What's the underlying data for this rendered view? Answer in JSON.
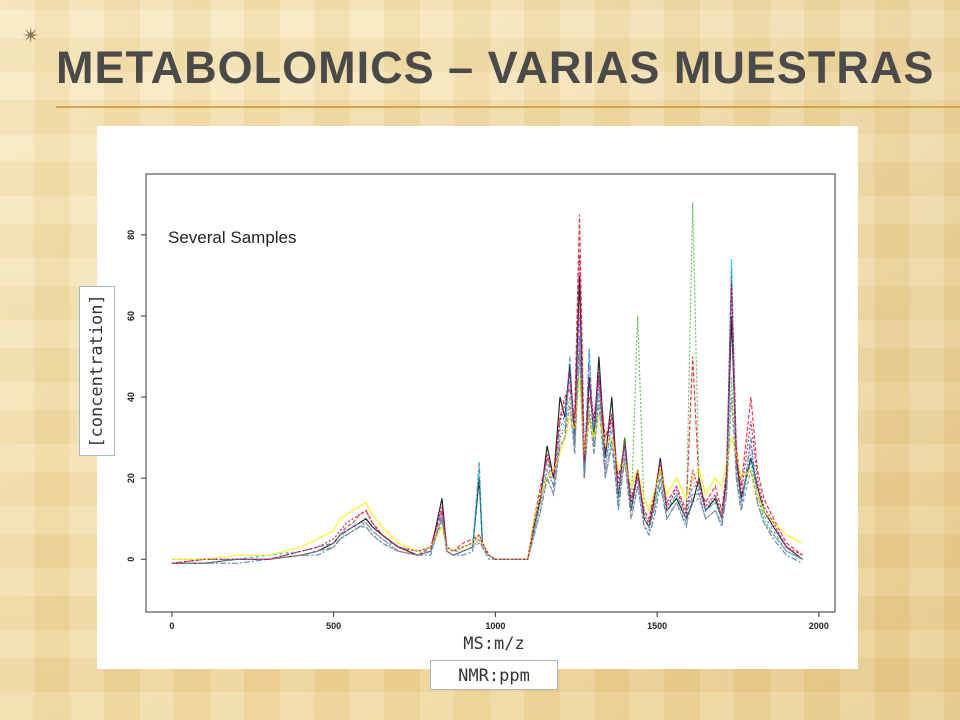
{
  "slide": {
    "title": "METABOLOMICS – VARIAS MUESTRAS",
    "bullet_icon": "star-icon",
    "accent_color": "#d5a44e"
  },
  "labels": {
    "annotation": "Several Samples",
    "ylabel": "[concentration]",
    "xlabel_line1": "MS:m/z",
    "xlabel_line2": "NMR:ppm"
  },
  "chart_data": {
    "type": "line",
    "title": "",
    "annotation": "Several Samples",
    "xlabel": "MS:m/z / NMR:ppm",
    "ylabel": "[concentration]",
    "xlim": [
      -80,
      2050
    ],
    "ylim": [
      -13,
      95
    ],
    "xticks": [
      0,
      500,
      1000,
      1500,
      2000
    ],
    "yticks": [
      0,
      20,
      40,
      60,
      80
    ],
    "grid": false,
    "legend": "none",
    "series_colors": [
      "#000000",
      "#e41a1c",
      "#4daf4a",
      "#377eb8",
      "#00bcd4",
      "#d633d6",
      "#ffee00",
      "#888888",
      "#b8005a"
    ],
    "x": [
      0,
      100,
      200,
      300,
      400,
      450,
      500,
      520,
      540,
      560,
      580,
      600,
      620,
      650,
      700,
      760,
      800,
      835,
      850,
      870,
      900,
      930,
      950,
      960,
      980,
      1000,
      1050,
      1100,
      1120,
      1140,
      1160,
      1180,
      1200,
      1215,
      1230,
      1245,
      1260,
      1275,
      1290,
      1305,
      1320,
      1340,
      1360,
      1380,
      1400,
      1420,
      1440,
      1460,
      1475,
      1490,
      1510,
      1530,
      1560,
      1590,
      1610,
      1630,
      1650,
      1680,
      1700,
      1715,
      1730,
      1745,
      1760,
      1790,
      1810,
      1830,
      1860,
      1900,
      1950
    ],
    "series": [
      {
        "values": [
          -1,
          -1,
          0,
          0,
          1,
          2,
          4,
          6,
          7,
          8,
          9,
          10,
          8,
          6,
          3,
          1,
          2,
          15,
          2,
          1,
          2,
          3,
          20,
          4,
          1,
          0,
          0,
          0,
          8,
          15,
          28,
          20,
          40,
          35,
          48,
          30,
          70,
          20,
          45,
          30,
          50,
          25,
          40,
          15,
          30,
          12,
          22,
          10,
          8,
          14,
          25,
          12,
          15,
          10,
          14,
          20,
          12,
          15,
          10,
          20,
          60,
          25,
          15,
          25,
          18,
          12,
          8,
          3,
          0
        ]
      },
      {
        "values": [
          -1,
          0,
          0,
          0,
          2,
          3,
          4,
          6,
          8,
          9,
          11,
          12,
          9,
          6,
          3,
          1,
          3,
          12,
          3,
          2,
          4,
          5,
          6,
          4,
          1,
          0,
          0,
          0,
          10,
          18,
          25,
          20,
          35,
          40,
          42,
          35,
          85,
          25,
          40,
          35,
          45,
          30,
          35,
          20,
          28,
          15,
          20,
          12,
          10,
          16,
          22,
          14,
          18,
          12,
          50,
          18,
          14,
          18,
          12,
          22,
          70,
          28,
          18,
          40,
          22,
          15,
          10,
          4,
          1
        ]
      },
      {
        "values": [
          -1,
          -1,
          0,
          0,
          1,
          2,
          3,
          5,
          6,
          7,
          8,
          9,
          7,
          5,
          2,
          1,
          2,
          10,
          2,
          1,
          2,
          3,
          5,
          3,
          1,
          0,
          0,
          0,
          7,
          14,
          22,
          18,
          30,
          32,
          40,
          28,
          50,
          22,
          38,
          28,
          40,
          22,
          35,
          15,
          30,
          12,
          60,
          12,
          8,
          12,
          20,
          12,
          16,
          10,
          88,
          18,
          12,
          14,
          10,
          18,
          45,
          22,
          14,
          24,
          16,
          10,
          6,
          2,
          0
        ]
      },
      {
        "values": [
          -1,
          -1,
          -1,
          0,
          1,
          1,
          3,
          5,
          6,
          7,
          8,
          8,
          6,
          4,
          2,
          1,
          1,
          11,
          2,
          1,
          1,
          2,
          24,
          3,
          0,
          0,
          0,
          0,
          6,
          12,
          20,
          16,
          28,
          30,
          50,
          26,
          55,
          20,
          52,
          26,
          45,
          20,
          30,
          12,
          25,
          10,
          18,
          8,
          6,
          10,
          18,
          10,
          14,
          8,
          16,
          16,
          10,
          12,
          8,
          16,
          72,
          20,
          12,
          30,
          14,
          9,
          5,
          1,
          -1
        ]
      },
      {
        "values": [
          0,
          0,
          0,
          1,
          2,
          3,
          4,
          6,
          7,
          8,
          9,
          9,
          7,
          5,
          3,
          2,
          2,
          9,
          3,
          2,
          2,
          3,
          22,
          4,
          1,
          0,
          0,
          0,
          8,
          15,
          24,
          18,
          32,
          36,
          45,
          30,
          60,
          22,
          50,
          30,
          42,
          24,
          32,
          14,
          28,
          12,
          20,
          10,
          8,
          12,
          22,
          12,
          16,
          10,
          18,
          18,
          12,
          14,
          10,
          18,
          74,
          22,
          14,
          26,
          16,
          11,
          7,
          2,
          0
        ]
      },
      {
        "values": [
          -1,
          -1,
          0,
          0,
          1,
          2,
          4,
          5,
          7,
          8,
          8,
          9,
          7,
          5,
          2,
          1,
          2,
          12,
          2,
          1,
          2,
          3,
          5,
          3,
          1,
          0,
          0,
          0,
          7,
          14,
          22,
          18,
          30,
          34,
          44,
          28,
          62,
          24,
          48,
          32,
          44,
          22,
          34,
          16,
          26,
          12,
          20,
          10,
          8,
          14,
          24,
          12,
          18,
          10,
          20,
          16,
          12,
          16,
          10,
          20,
          66,
          24,
          14,
          28,
          18,
          12,
          8,
          3,
          0
        ]
      },
      {
        "values": [
          0,
          0,
          1,
          1,
          3,
          5,
          7,
          10,
          11,
          12,
          13,
          14,
          11,
          8,
          4,
          2,
          3,
          8,
          3,
          2,
          3,
          4,
          6,
          4,
          1,
          0,
          0,
          0,
          10,
          16,
          20,
          22,
          26,
          30,
          35,
          32,
          45,
          26,
          35,
          30,
          36,
          28,
          30,
          22,
          24,
          18,
          22,
          15,
          12,
          16,
          22,
          16,
          20,
          15,
          20,
          22,
          16,
          20,
          18,
          24,
          30,
          26,
          20,
          22,
          16,
          12,
          9,
          6,
          4
        ]
      },
      {
        "values": [
          -1,
          -1,
          0,
          0,
          1,
          2,
          3,
          5,
          6,
          7,
          8,
          8,
          6,
          4,
          2,
          1,
          2,
          10,
          2,
          1,
          2,
          3,
          4,
          3,
          1,
          0,
          0,
          0,
          6,
          12,
          20,
          16,
          28,
          30,
          38,
          26,
          52,
          20,
          36,
          26,
          38,
          20,
          28,
          14,
          24,
          10,
          18,
          8,
          7,
          12,
          20,
          10,
          14,
          9,
          14,
          15,
          10,
          12,
          9,
          16,
          40,
          20,
          12,
          22,
          14,
          9,
          6,
          2,
          0
        ]
      },
      {
        "values": [
          -1,
          0,
          0,
          0,
          2,
          3,
          5,
          7,
          9,
          10,
          11,
          12,
          9,
          6,
          3,
          2,
          3,
          13,
          3,
          2,
          3,
          4,
          6,
          4,
          1,
          0,
          0,
          0,
          9,
          16,
          26,
          20,
          34,
          38,
          46,
          32,
          75,
          24,
          44,
          34,
          46,
          26,
          36,
          18,
          28,
          14,
          22,
          11,
          9,
          15,
          24,
          13,
          17,
          11,
          22,
          17,
          13,
          16,
          11,
          21,
          68,
          26,
          16,
          34,
          20,
          13,
          9,
          3,
          1
        ]
      }
    ]
  }
}
